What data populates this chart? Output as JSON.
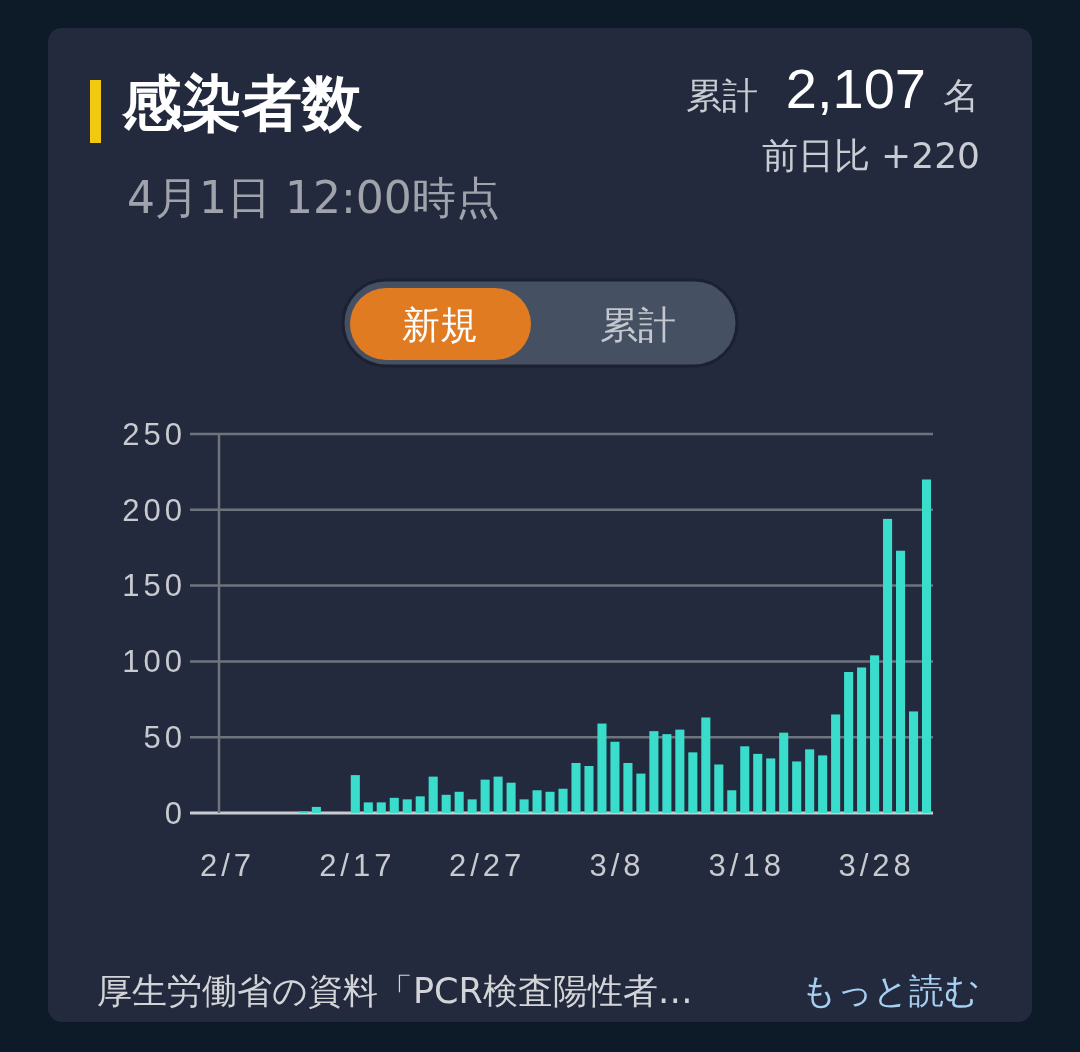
{
  "chart_data": {
    "type": "bar",
    "title": "感染者数",
    "subtitle": "4月1日 12:00時点",
    "categories": [
      "2/7",
      null,
      null,
      null,
      null,
      null,
      null,
      null,
      null,
      null,
      "2/17",
      null,
      null,
      null,
      null,
      null,
      null,
      null,
      null,
      null,
      "2/27",
      null,
      null,
      null,
      null,
      null,
      null,
      null,
      null,
      null,
      "3/8",
      null,
      null,
      null,
      null,
      null,
      null,
      null,
      null,
      null,
      "3/18",
      null,
      null,
      null,
      null,
      null,
      null,
      null,
      null,
      null,
      "3/28",
      null,
      null,
      null,
      null
    ],
    "values": [
      0,
      0,
      0,
      0,
      0,
      0,
      1,
      4,
      0,
      0,
      25,
      7,
      7,
      10,
      9,
      11,
      24,
      12,
      14,
      9,
      22,
      24,
      20,
      9,
      15,
      14,
      16,
      33,
      31,
      59,
      47,
      33,
      26,
      54,
      52,
      55,
      40,
      63,
      32,
      15,
      44,
      39,
      36,
      53,
      34,
      42,
      38,
      65,
      93,
      96,
      104,
      194,
      173,
      67,
      220
    ],
    "color": "#3adccb",
    "ylim": [
      0,
      250
    ],
    "yticks": [
      0,
      50,
      100,
      150,
      200,
      250
    ],
    "grid": "y",
    "annotations": [
      "累計",
      "2,107",
      "名",
      "前日比 +220",
      "新規",
      "累計",
      "厚生労働省の資料「PCR検査陽性者…",
      "もっと読む"
    ]
  }
}
